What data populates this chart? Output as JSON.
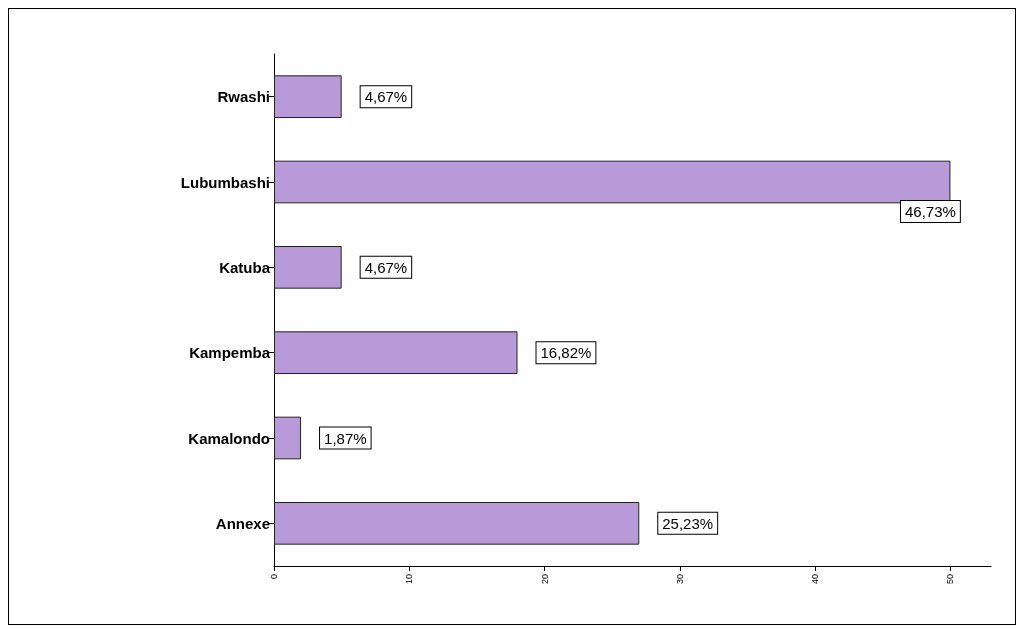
{
  "chart_data": {
    "type": "bar",
    "orientation": "horizontal",
    "categories": [
      "Rwashi",
      "Lubumbashi",
      "Katuba",
      "Kampemba",
      "Kamalondo",
      "Annexe"
    ],
    "values": [
      5,
      50,
      5,
      18,
      2,
      27
    ],
    "annotations": [
      {
        "text": "4,67%",
        "x": 5,
        "y": "Rwashi"
      },
      {
        "text": "46,73%",
        "x": 50,
        "y": "Lubumbashi"
      },
      {
        "text": "4,67%",
        "x": 5,
        "y": "Katuba"
      },
      {
        "text": "16,82%",
        "x": 18,
        "y": "Kampemba"
      },
      {
        "text": "1,87%",
        "x": 2,
        "y": "Kamalondo"
      },
      {
        "text": "25,23%",
        "x": 27,
        "y": "Annexe"
      }
    ],
    "color": "#b89ad8",
    "xlim": [
      0,
      53
    ],
    "xticks": [
      0,
      10,
      20,
      30,
      40,
      50
    ],
    "grid": false
  }
}
